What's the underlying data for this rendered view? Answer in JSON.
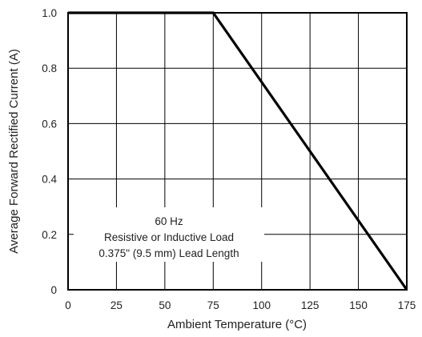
{
  "chart_data": {
    "type": "line",
    "xlabel": "Ambient Temperature (°C)",
    "ylabel": "Average Forward Rectified Current (A)",
    "xlim": [
      0,
      175
    ],
    "ylim": [
      0,
      1.0
    ],
    "x_ticks": [
      0,
      25,
      50,
      75,
      100,
      125,
      150,
      175
    ],
    "y_ticks": [
      0,
      0.2,
      0.4,
      0.6,
      0.8,
      1.0
    ],
    "x_tick_labels": [
      "0",
      "25",
      "50",
      "75",
      "100",
      "125",
      "150",
      "175"
    ],
    "y_tick_labels": [
      "0",
      "0.2",
      "0.4",
      "0.6",
      "0.8",
      "1.0"
    ],
    "grid": true,
    "series": [
      {
        "x": [
          0,
          75,
          175
        ],
        "y": [
          1.0,
          1.0,
          0
        ]
      }
    ],
    "annotation_lines": [
      "60 Hz",
      "Resistive or Inductive Load",
      "0.375\" (9.5 mm) Lead Length"
    ]
  }
}
